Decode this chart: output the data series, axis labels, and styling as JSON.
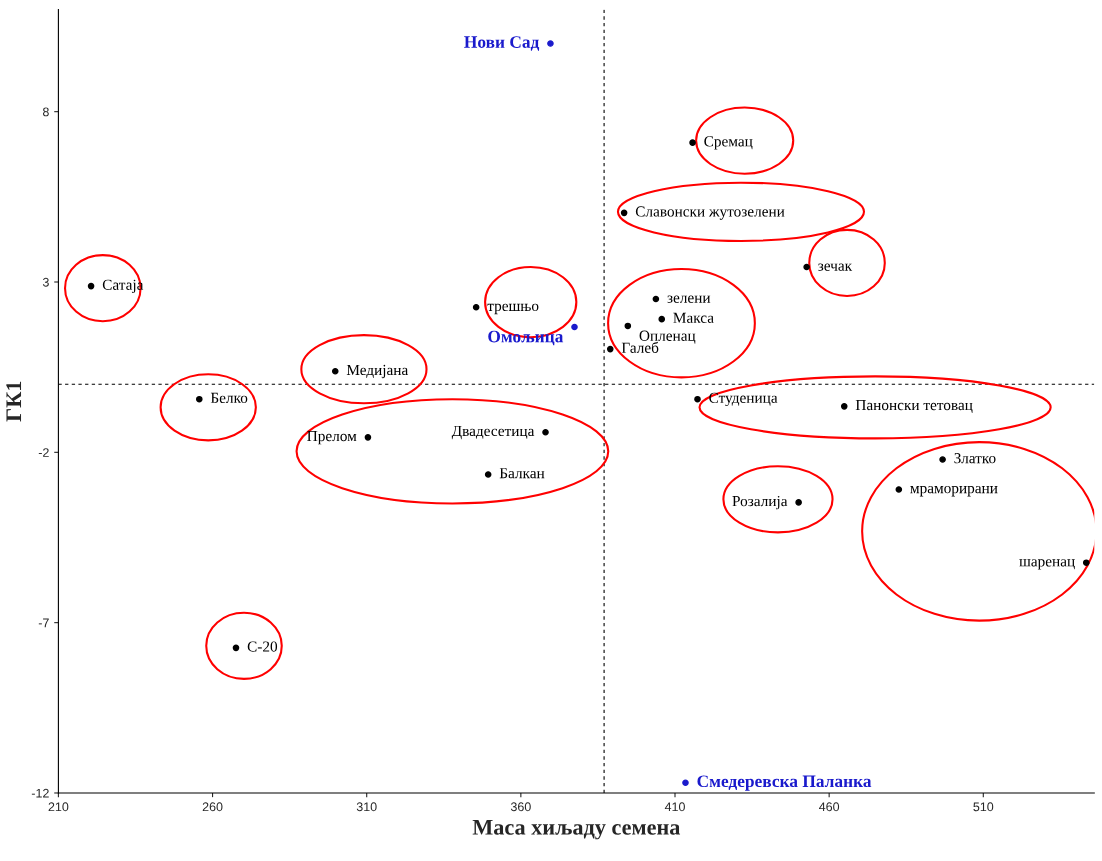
{
  "chart_data": {
    "type": "scatter",
    "xlabel": "Маса хиљаду семена",
    "ylabel": "ГК1",
    "xlim": [
      210,
      546
    ],
    "ylim": [
      -12,
      11
    ],
    "xticks": [
      210,
      260,
      310,
      360,
      410,
      460,
      510
    ],
    "yticks": [
      -12,
      -7,
      -2,
      3,
      8
    ],
    "grid": false,
    "marker": "circle",
    "ref_lines": [
      {
        "axis": "x",
        "value": 387,
        "color": "#000000",
        "line_style": "dashed"
      },
      {
        "axis": "y",
        "value": 0,
        "color": "#000000",
        "line_style": "dashed"
      }
    ],
    "series": [
      {
        "color": "#000000",
        "x": [
          415.7,
          393.5,
          452.7,
          220.6,
          345.5,
          403.8,
          405.7,
          394.7,
          389.0,
          299.8,
          255.7,
          417.3,
          464.9,
          310.4,
          368.0,
          349.4,
          496.8,
          482.6,
          450.1,
          543.4,
          267.6
        ],
        "values": [
          7.09,
          5.03,
          3.44,
          2.88,
          2.26,
          2.5,
          1.91,
          1.71,
          1.03,
          0.38,
          -0.44,
          -0.44,
          -0.65,
          -1.56,
          -1.41,
          -2.65,
          -2.21,
          -3.09,
          -3.47,
          -5.24,
          -7.74
        ],
        "value_labels": [
          "Сремац",
          "Славонски жутозелени",
          "зечак",
          "Сатаја",
          "трешњо",
          "зелени",
          "Макса",
          "Опленац",
          "Галеб",
          "Медијана",
          "Белко",
          "Студеница",
          "Панонски тетовац",
          "Прелом",
          "Двадесетица",
          "Балкан",
          "Златко",
          "мраморирани",
          "Розалија",
          "шаренац",
          "С-20"
        ]
      },
      {
        "color": "#1a1acc",
        "x": [
          369.6,
          377.4,
          413.4
        ],
        "values": [
          10.0,
          1.68,
          -11.7
        ],
        "value_labels": [
          "Нови Сад",
          "Омољица",
          "Смедеревска Паланка"
        ]
      }
    ]
  }
}
